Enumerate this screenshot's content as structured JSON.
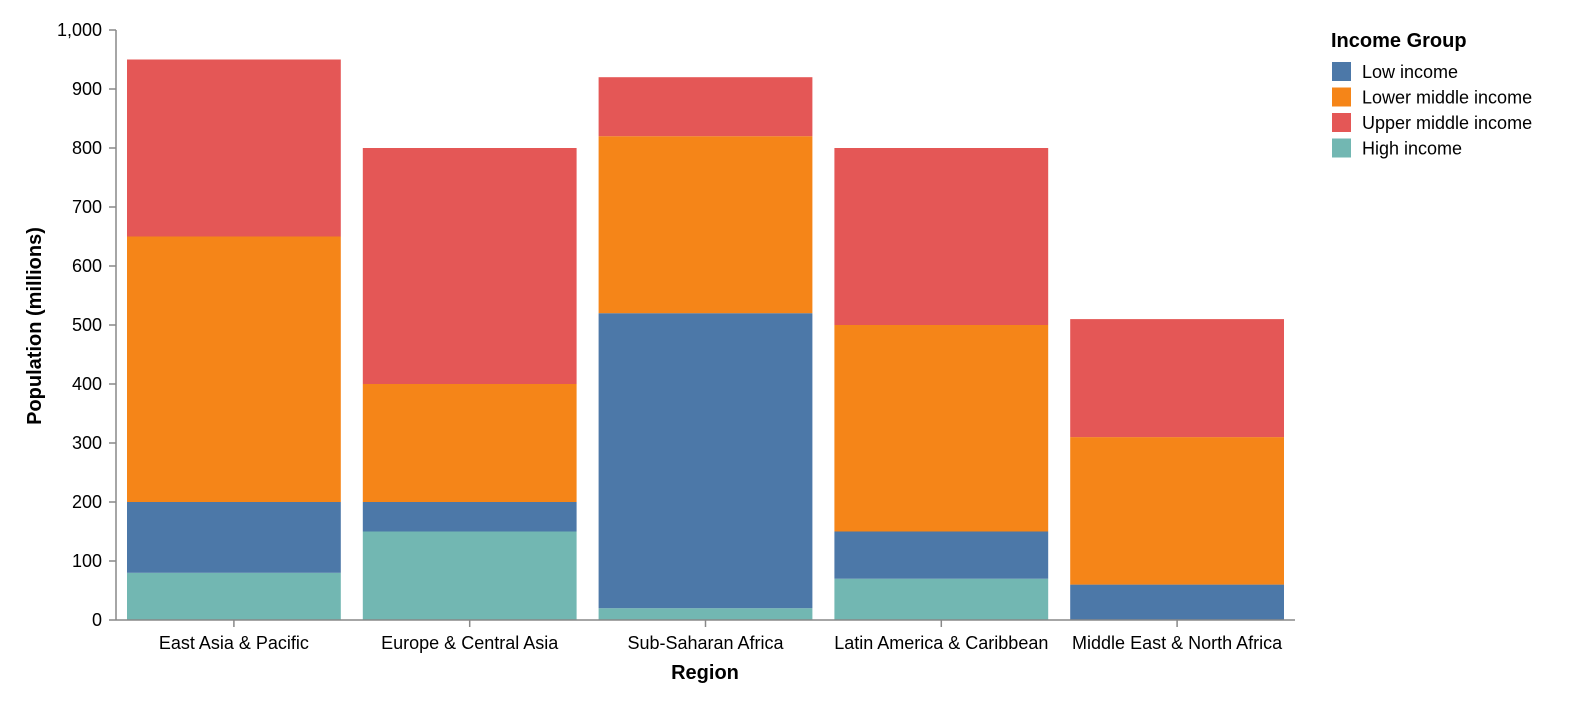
{
  "chart_data": {
    "type": "bar",
    "stacked": true,
    "title": "",
    "xlabel": "Region",
    "ylabel": "Population (millions)",
    "ylim": [
      0,
      1000
    ],
    "y_ticks": [
      "0",
      "100",
      "200",
      "300",
      "400",
      "500",
      "600",
      "700",
      "800",
      "900",
      "1,000"
    ],
    "grid": false,
    "legend_position": "top-right",
    "legend_title": "Income Group",
    "categories": [
      "East Asia & Pacific",
      "Europe & Central Asia",
      "Sub-Saharan Africa",
      "Latin America & Caribbean",
      "Middle East & North Africa"
    ],
    "series": [
      {
        "name": "High income",
        "color": "#72b7b2",
        "values": [
          80,
          150,
          20,
          70,
          0
        ]
      },
      {
        "name": "Low income",
        "color": "#4c78a8",
        "values": [
          120,
          50,
          500,
          80,
          60
        ]
      },
      {
        "name": "Lower middle income",
        "color": "#f58518",
        "values": [
          450,
          200,
          300,
          350,
          250
        ]
      },
      {
        "name": "Upper middle income",
        "color": "#e45756",
        "values": [
          300,
          400,
          100,
          300,
          200
        ]
      }
    ],
    "legend_order": [
      "Low income",
      "Lower middle income",
      "Upper middle income",
      "High income"
    ]
  }
}
